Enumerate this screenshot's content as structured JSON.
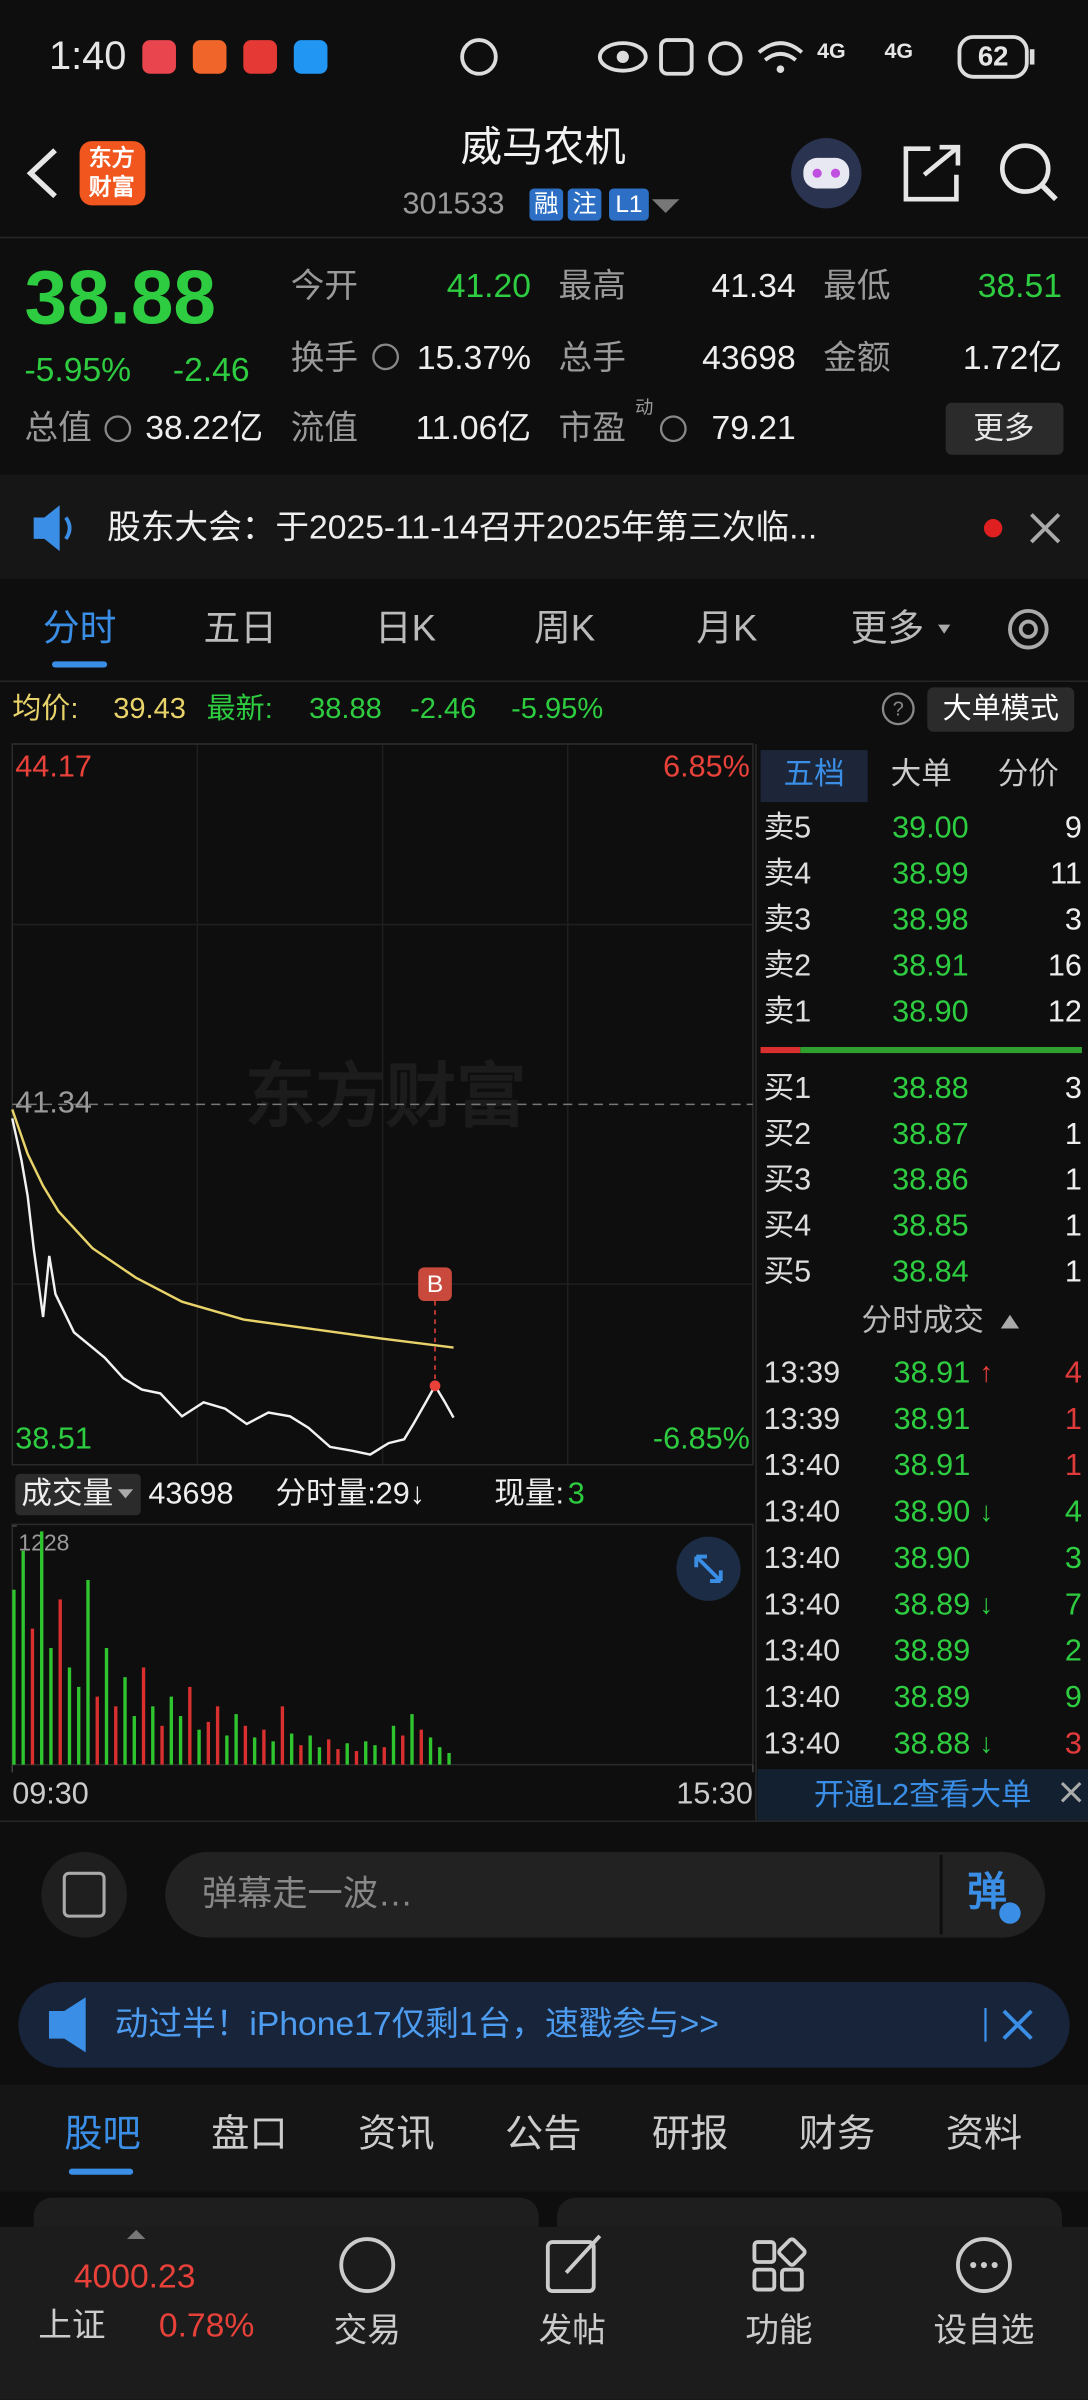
{
  "status_bar": {
    "time": "1:40",
    "network": [
      "4G",
      "4G"
    ],
    "battery": "62"
  },
  "header": {
    "logo": [
      "东方",
      "财富"
    ],
    "title": "威马农机",
    "code": "301533",
    "tags": [
      "融",
      "注",
      "L1"
    ]
  },
  "quote": {
    "price": "38.88",
    "change_percent": "-5.95%",
    "change": "-2.46",
    "stats": [
      {
        "label": "今开",
        "value": "41.20",
        "color": "#2ecc40"
      },
      {
        "label": "最高",
        "value": "41.34"
      },
      {
        "label": "最低",
        "value": "38.51",
        "color": "#2ecc40"
      },
      {
        "label": "换手",
        "value": "15.37%"
      },
      {
        "label": "总手",
        "value": "43698"
      },
      {
        "label": "金额",
        "value": "1.72亿"
      },
      {
        "label": "总值",
        "value": "38.22亿"
      },
      {
        "label": "流值",
        "value": "11.06亿"
      },
      {
        "label": "市盈",
        "value": "79.21",
        "superscript": "动"
      }
    ],
    "more_button": "更多"
  },
  "notice": "股东大会：于2025-11-14召开2025年第三次临...",
  "tabs": [
    "分时",
    "五日",
    "日K",
    "周K",
    "月K",
    "更多"
  ],
  "info_bar": {
    "avg_label": "均价:",
    "avg": "39.43",
    "latest_label": "最新:",
    "latest": "38.88",
    "change": "-2.46",
    "change_percent": "-5.95%",
    "button": "大单模式"
  },
  "watermark": "东方财富",
  "chart_data": [
    {
      "type": "line",
      "series": [
        {
          "color": "#f2f2f2",
          "x": [
            0,
            3,
            5,
            7,
            10,
            12,
            14,
            17,
            20,
            26,
            30,
            36,
            42,
            48,
            55,
            62,
            69,
            76,
            83,
            90,
            96,
            103,
            110,
            116,
            122,
            127,
            130,
            134,
            137,
            140,
            143
          ],
          "values": [
            41.23,
            40.9,
            40.62,
            40.2,
            39.67,
            40.15,
            39.85,
            39.7,
            39.55,
            39.43,
            39.35,
            39.19,
            39.1,
            39.07,
            38.89,
            39.0,
            38.95,
            38.83,
            38.92,
            38.89,
            38.8,
            38.65,
            38.62,
            38.59,
            38.68,
            38.71,
            38.83,
            39.0,
            39.13,
            39.01,
            38.88
          ]
        },
        {
          "color": "#e8d36a",
          "x": [
            0,
            5,
            10,
            15,
            26,
            40,
            55,
            75,
            90,
            105,
            120,
            143
          ],
          "values": [
            41.3,
            40.95,
            40.7,
            40.5,
            40.21,
            39.98,
            39.79,
            39.65,
            39.6,
            39.55,
            39.5,
            39.43
          ]
        }
      ],
      "xlim": [
        0,
        240
      ],
      "xticks": [
        {
          "value": 0,
          "label": "09:30"
        },
        {
          "value": 240,
          "label": "15:30"
        }
      ],
      "ylim": [
        38.51,
        44.17
      ],
      "yticks": [
        38.51,
        41.34,
        44.17
      ],
      "y2lim": [
        -6.85,
        6.85
      ],
      "y2ticks": [
        {
          "value": -6.85,
          "label": "-6.85%"
        },
        {
          "value": 6.85,
          "label": "6.85%"
        }
      ],
      "annotation": {
        "text": "B",
        "x": 137
      },
      "grid": true
    },
    {
      "type": "bar",
      "x": [
        0,
        3,
        6,
        9,
        12,
        15,
        18,
        21,
        24,
        27,
        30,
        33,
        36,
        39,
        42,
        45,
        48,
        51,
        54,
        57,
        60,
        63,
        66,
        69,
        72,
        75,
        78,
        81,
        84,
        87,
        90,
        93,
        96,
        99,
        102,
        105,
        108,
        111,
        114,
        117,
        120,
        123,
        126,
        129,
        132,
        135,
        138,
        141
      ],
      "values": [
        900,
        1100,
        700,
        1200,
        600,
        850,
        500,
        400,
        950,
        350,
        600,
        300,
        450,
        250,
        500,
        300,
        200,
        350,
        250,
        400,
        180,
        220,
        300,
        150,
        260,
        200,
        140,
        180,
        120,
        300,
        160,
        100,
        150,
        90,
        130,
        80,
        110,
        70,
        120,
        100,
        90,
        200,
        150,
        260,
        180,
        140,
        90,
        60
      ],
      "colors": [
        "#2fc52f",
        "#2fc52f",
        "#d9302f",
        "#2fc52f",
        "#2fc52f",
        "#d9302f",
        "#2fc52f",
        "#2fc52f",
        "#2fc52f",
        "#d9302f",
        "#2fc52f",
        "#d9302f",
        "#2fc52f",
        "#2fc52f",
        "#d9302f",
        "#2fc52f",
        "#d9302f",
        "#2fc52f",
        "#2fc52f",
        "#d9302f",
        "#2fc52f",
        "#d9302f",
        "#d9302f",
        "#2fc52f",
        "#2fc52f",
        "#d9302f",
        "#2fc52f",
        "#d9302f",
        "#2fc52f",
        "#d9302f",
        "#2fc52f",
        "#d9302f",
        "#2fc52f",
        "#2fc52f",
        "#d9302f",
        "#d9302f",
        "#2fc52f",
        "#d9302f",
        "#2fc52f",
        "#2fc52f",
        "#d9302f",
        "#2fc52f",
        "#d9302f",
        "#2fc52f",
        "#d9302f",
        "#2fc52f",
        "#2fc52f",
        "#2fc52f"
      ],
      "xlim": [
        0,
        240
      ],
      "ylim": [
        0,
        1228
      ],
      "yticks": [
        1228
      ]
    }
  ],
  "volume_header": {
    "label": "成交量",
    "total": "43698",
    "minute_volume": "分时量:29↓",
    "current_label": "现量:",
    "current": "3"
  },
  "order_book": {
    "tabs": [
      "五档",
      "大单",
      "分价"
    ],
    "asks": [
      {
        "label": "卖5",
        "price": "39.00",
        "volume": "9"
      },
      {
        "label": "卖4",
        "price": "38.99",
        "volume": "11"
      },
      {
        "label": "卖3",
        "price": "38.98",
        "volume": "3"
      },
      {
        "label": "卖2",
        "price": "38.91",
        "volume": "16"
      },
      {
        "label": "卖1",
        "price": "38.90",
        "volume": "12"
      }
    ],
    "bids": [
      {
        "label": "买1",
        "price": "38.88",
        "volume": "3"
      },
      {
        "label": "买2",
        "price": "38.87",
        "volume": "1"
      },
      {
        "label": "买3",
        "price": "38.86",
        "volume": "1"
      },
      {
        "label": "买4",
        "price": "38.85",
        "volume": "1"
      },
      {
        "label": "买5",
        "price": "38.84",
        "volume": "1"
      }
    ],
    "trades_title": "分时成交",
    "trades": [
      {
        "time": "13:39",
        "price": "38.91",
        "arrow": "↑",
        "volume": "4",
        "color": "#e03a3a"
      },
      {
        "time": "13:39",
        "price": "38.91",
        "volume": "1",
        "color": "#e03a3a"
      },
      {
        "time": "13:40",
        "price": "38.91",
        "volume": "1",
        "color": "#e03a3a"
      },
      {
        "time": "13:40",
        "price": "38.90",
        "arrow": "↓",
        "volume": "4",
        "color": "#2ecc40"
      },
      {
        "time": "13:40",
        "price": "38.90",
        "volume": "3",
        "color": "#2ecc40"
      },
      {
        "time": "13:40",
        "price": "38.89",
        "arrow": "↓",
        "volume": "7",
        "color": "#2ecc40"
      },
      {
        "time": "13:40",
        "price": "38.89",
        "volume": "2",
        "color": "#2ecc40"
      },
      {
        "time": "13:40",
        "price": "38.89",
        "volume": "9",
        "color": "#2ecc40"
      },
      {
        "time": "13:40",
        "price": "38.88",
        "arrow": "↓",
        "volume": "3",
        "color": "#e03a3a"
      }
    ],
    "l2_banner": "开通L2查看大单"
  },
  "danmu": {
    "placeholder": "弹幕走一波…",
    "button": "弹"
  },
  "ad": "动过半！iPhone17仅剩1台，速戳参与>>",
  "bottom_tabs": [
    "股吧",
    "盘口",
    "资讯",
    "公告",
    "研报",
    "财务",
    "资料"
  ],
  "index_quote": {
    "name": "上证",
    "value": "4000.23",
    "change_percent": "0.78%"
  },
  "bottom_nav": [
    "交易",
    "发帖",
    "功能",
    "设自选"
  ]
}
